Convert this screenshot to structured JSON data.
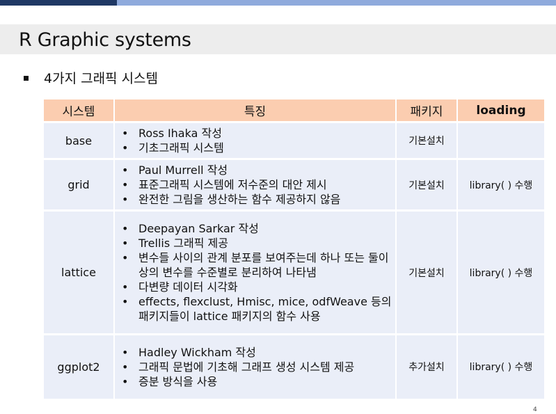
{
  "header": {
    "title": "R Graphic systems"
  },
  "section": {
    "bullet_text": "4가지 그래픽 시스템"
  },
  "table": {
    "headers": [
      "시스템",
      "특징",
      "패키지",
      "loading"
    ],
    "rows": [
      {
        "system": "base",
        "features": [
          "Ross Ihaka 작성",
          "기초그래픽 시스템"
        ],
        "package": "기본설치",
        "loading": ""
      },
      {
        "system": "grid",
        "features": [
          "Paul Murrell 작성",
          "표준그래픽 시스템에 저수준의 대안 제시",
          "완전한 그림을 생산하는 함수 제공하지 않음"
        ],
        "package": "기본설치",
        "loading": "library( ) 수행"
      },
      {
        "system": "lattice",
        "features": [
          "Deepayan Sarkar 작성",
          "Trellis 그래픽 제공",
          "변수들 사이의 관계 분포를 보여주는데 하나 또는 둘이상의 변수를 수준별로 분리하여 나타냄",
          "다변량 데이터 시각화",
          "effects, flexclust, Hmisc, mice, odfWeave 등의 패키지들이 lattice 패키지의 함수 사용"
        ],
        "package": "기본설치",
        "loading": "library( ) 수행"
      },
      {
        "system": "ggplot2",
        "features": [
          "Hadley Wickham 작성",
          "그래픽 문법에 기초해 그래프 생성 시스템 제공",
          "증분 방식을 사용"
        ],
        "package": "추가설치",
        "loading": "library( ) 수행"
      }
    ]
  },
  "footer": {
    "page_number": "4"
  },
  "colors": {
    "top_bar_dark": "#1f3864",
    "top_bar_light": "#8faadc",
    "header_row": "#fbcdb0",
    "body_row": "#eaeef8",
    "title_band": "#ededed"
  }
}
